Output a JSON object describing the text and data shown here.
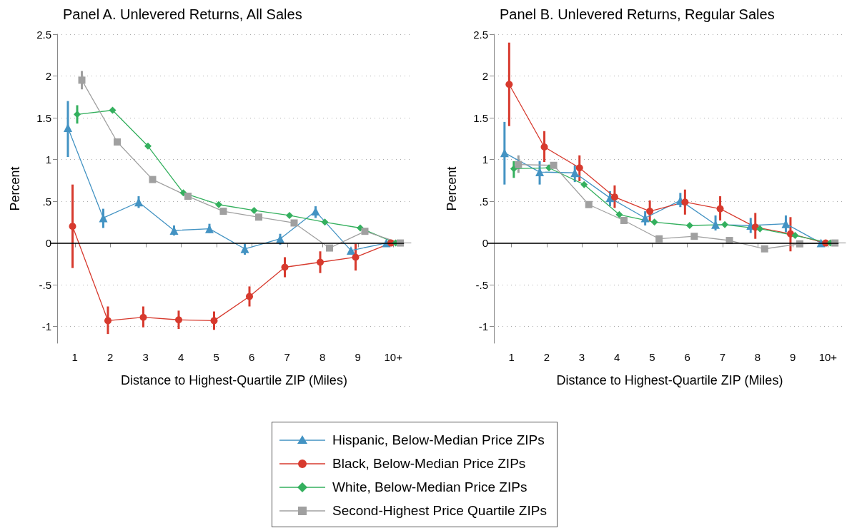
{
  "chart_data": [
    {
      "type": "line",
      "title": "Panel A. Unlevered Returns, All Sales",
      "xlabel": "Distance to Highest-Quartile ZIP (Miles)",
      "ylabel": "Percent",
      "categories": [
        "1",
        "2",
        "3",
        "4",
        "5",
        "6",
        "7",
        "8",
        "9",
        "10+"
      ],
      "ylim": [
        -1.2,
        2.5
      ],
      "yticks": [
        {
          "value": -1,
          "label": "-1"
        },
        {
          "value": -0.5,
          "label": "-.5"
        },
        0,
        {
          "value": 0.5,
          "label": ".5"
        },
        1,
        1.5,
        2,
        2.5
      ],
      "grid": "y",
      "legend": "bottom",
      "ref_lines": [
        {
          "axis": "y",
          "value": 0,
          "color": "#000000"
        }
      ],
      "series": [
        {
          "name": "Hispanic, Below-Median Price ZIPs",
          "color": "#4393c3",
          "marker": "triangle",
          "values": [
            1.38,
            0.3,
            0.49,
            0.15,
            0.17,
            -0.07,
            0.05,
            0.38,
            -0.09,
            0
          ],
          "errors": [
            [
              1.03,
              1.7
            ],
            [
              0.18,
              0.41
            ],
            [
              0.42,
              0.56
            ],
            [
              0.09,
              0.21
            ],
            [
              0.12,
              0.23
            ],
            [
              -0.14,
              -0.01
            ],
            [
              -0.02,
              0.11
            ],
            [
              0.3,
              0.44
            ],
            null,
            null
          ]
        },
        {
          "name": "Black, Below-Median Price ZIPs",
          "color": "#d73a2e",
          "marker": "circle",
          "values": [
            0.2,
            -0.93,
            -0.89,
            -0.92,
            -0.93,
            -0.64,
            -0.29,
            -0.23,
            -0.17,
            0
          ],
          "errors": [
            [
              -0.3,
              0.7
            ],
            [
              -1.09,
              -0.76
            ],
            [
              -1.01,
              -0.76
            ],
            [
              -1.03,
              -0.81
            ],
            [
              -1.04,
              -0.82
            ],
            [
              -0.76,
              -0.52
            ],
            [
              -0.41,
              -0.17
            ],
            [
              -0.36,
              -0.1
            ],
            [
              -0.33,
              -0.01
            ],
            null
          ]
        },
        {
          "name": "White, Below-Median Price ZIPs",
          "color": "#34b05e",
          "marker": "diamond",
          "values": [
            1.54,
            1.59,
            1.16,
            0.6,
            0.46,
            0.39,
            0.33,
            0.25,
            0.18,
            0
          ],
          "errors": [
            [
              1.43,
              1.65
            ],
            null,
            null,
            null,
            null,
            null,
            null,
            null,
            null,
            null
          ]
        },
        {
          "name": "Second-Highest Price Quartile ZIPs",
          "color": "#a0a0a0",
          "marker": "square",
          "values": [
            1.95,
            1.21,
            0.76,
            0.56,
            0.38,
            0.31,
            0.24,
            -0.06,
            0.14,
            0
          ],
          "errors": [
            [
              1.84,
              2.06
            ],
            null,
            null,
            null,
            null,
            null,
            null,
            null,
            [
              0.1,
              0.17
            ],
            null
          ]
        }
      ]
    },
    {
      "type": "line",
      "title": "Panel B. Unlevered Returns, Regular Sales",
      "xlabel": "Distance to Highest-Quartile ZIP (Miles)",
      "ylabel": "Percent",
      "categories": [
        "1",
        "2",
        "3",
        "4",
        "5",
        "6",
        "7",
        "8",
        "9",
        "10+"
      ],
      "ylim": [
        -1.2,
        2.5
      ],
      "yticks": [
        {
          "value": -1,
          "label": "-1"
        },
        {
          "value": -0.5,
          "label": "-.5"
        },
        0,
        {
          "value": 0.5,
          "label": ".5"
        },
        1,
        1.5,
        2,
        2.5
      ],
      "grid": "y",
      "legend": "bottom",
      "ref_lines": [
        {
          "axis": "y",
          "value": 0,
          "color": "#000000"
        }
      ],
      "series": [
        {
          "name": "Hispanic, Below-Median Price ZIPs",
          "color": "#4393c3",
          "marker": "triangle",
          "values": [
            1.08,
            0.85,
            0.84,
            0.54,
            0.3,
            0.51,
            0.22,
            0.21,
            0.23,
            0
          ],
          "errors": [
            [
              0.7,
              1.45
            ],
            [
              0.7,
              0.98
            ],
            [
              0.73,
              0.93
            ],
            [
              0.44,
              0.62
            ],
            [
              0.21,
              0.38
            ],
            [
              0.43,
              0.6
            ],
            [
              0.15,
              0.33
            ],
            [
              0.12,
              0.3
            ],
            [
              0.13,
              0.33
            ],
            null
          ]
        },
        {
          "name": "Black, Below-Median Price ZIPs",
          "color": "#d73a2e",
          "marker": "circle",
          "values": [
            1.9,
            1.15,
            0.9,
            0.55,
            0.38,
            0.49,
            0.41,
            0.19,
            0.11,
            0
          ],
          "errors": [
            [
              1.4,
              2.4
            ],
            [
              0.97,
              1.34
            ],
            [
              0.74,
              1.05
            ],
            [
              0.42,
              0.69
            ],
            [
              0.26,
              0.51
            ],
            [
              0.34,
              0.64
            ],
            [
              0.27,
              0.56
            ],
            [
              0.05,
              0.36
            ],
            [
              -0.1,
              0.31
            ],
            null
          ]
        },
        {
          "name": "White, Below-Median Price ZIPs",
          "color": "#34b05e",
          "marker": "diamond",
          "values": [
            0.89,
            0.9,
            0.7,
            0.34,
            0.25,
            0.21,
            0.22,
            0.17,
            0.09,
            0
          ],
          "errors": [
            [
              0.78,
              0.98
            ],
            null,
            null,
            null,
            null,
            null,
            null,
            null,
            null,
            null
          ]
        },
        {
          "name": "Second-Highest Price Quartile ZIPs",
          "color": "#a0a0a0",
          "marker": "square",
          "values": [
            0.94,
            0.93,
            0.46,
            0.27,
            0.05,
            0.08,
            0.03,
            -0.07,
            -0.01,
            0
          ],
          "errors": [
            [
              0.84,
              1.05
            ],
            null,
            null,
            null,
            null,
            null,
            null,
            null,
            null,
            null
          ]
        }
      ]
    }
  ]
}
